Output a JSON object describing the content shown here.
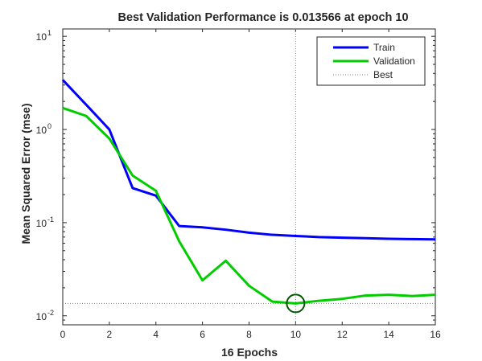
{
  "chart_data": {
    "type": "line",
    "title": "Best Validation Performance is 0.013566 at epoch 10",
    "xlabel": "16 Epochs",
    "ylabel": "Mean Squared Error  (mse)",
    "x_ticks": [
      "0",
      "2",
      "4",
      "6",
      "8",
      "10",
      "12",
      "14",
      "16"
    ],
    "y_ticks": [
      {
        "base": "10",
        "exp": "-2",
        "value": 0.01
      },
      {
        "base": "10",
        "exp": "-1",
        "value": 0.1
      },
      {
        "base": "10",
        "exp": "0",
        "value": 1
      },
      {
        "base": "10",
        "exp": "1",
        "value": 10
      }
    ],
    "xlim": [
      0,
      16
    ],
    "ylim": [
      0.008,
      12
    ],
    "y_scale": "log",
    "grid": false,
    "legend_position": "top-right",
    "x": [
      0,
      1,
      2,
      3,
      4,
      5,
      6,
      7,
      8,
      9,
      10,
      11,
      12,
      13,
      14,
      15,
      16
    ],
    "series": [
      {
        "name": "Train",
        "color": "#0000ff",
        "style": "solid",
        "values": [
          3.4,
          1.85,
          1.0,
          0.235,
          0.195,
          0.092,
          0.089,
          0.084,
          0.078,
          0.074,
          0.072,
          0.07,
          0.069,
          0.068,
          0.067,
          0.0665,
          0.066
        ]
      },
      {
        "name": "Validation",
        "color": "#00cc00",
        "style": "solid",
        "values": [
          1.7,
          1.4,
          0.8,
          0.32,
          0.22,
          0.063,
          0.024,
          0.039,
          0.021,
          0.0142,
          0.013566,
          0.0145,
          0.0152,
          0.0165,
          0.0168,
          0.0163,
          0.0168
        ]
      },
      {
        "name": "Best",
        "color": "#808080",
        "style": "dotted",
        "best_epoch": 10,
        "best_value": 0.013566
      }
    ]
  }
}
